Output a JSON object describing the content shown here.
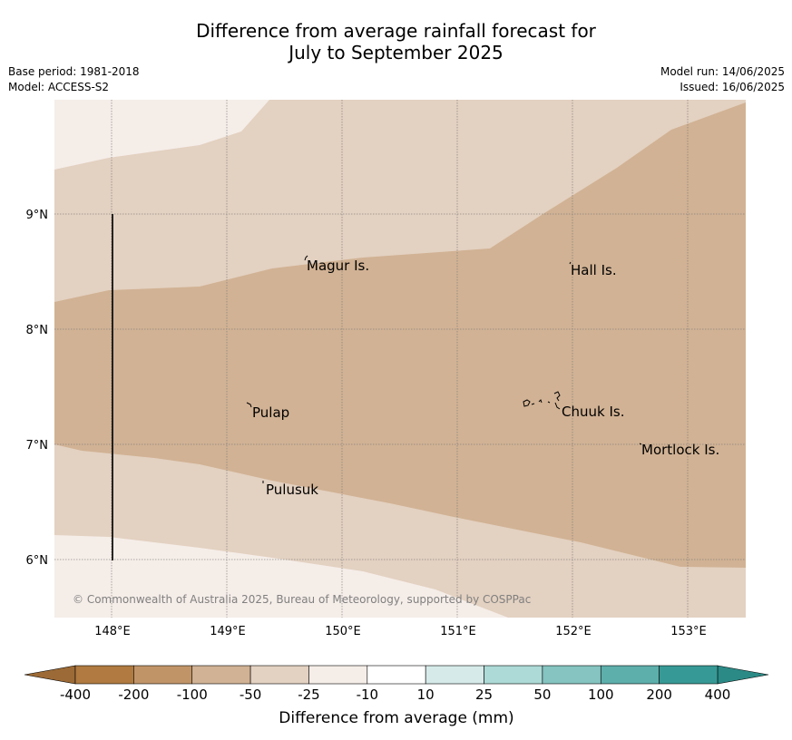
{
  "header": {
    "title_line1": "Difference from average rainfall forecast for",
    "title_line2": "July to September 2025",
    "base_period": "Base period: 1981-2018",
    "model": "Model: ACCESS-S2",
    "model_run": "Model run: 14/06/2025",
    "issued": "Issued: 16/06/2025"
  },
  "map": {
    "lon_ticks": [
      "148°E",
      "149°E",
      "150°E",
      "151°E",
      "152°E",
      "153°E"
    ],
    "lat_ticks": [
      "9°N",
      "8°N",
      "7°N",
      "6°N"
    ],
    "places": [
      "Magur Is.",
      "Hall Is.",
      "Pulap",
      "Chuuk Is.",
      "Mortlock Is.",
      "Pulusuk"
    ],
    "credit": "© Commonwealth of Australia 2025, Bureau of Meteorology, supported by COSPPac",
    "band_colors": {
      "minus_25_to_minus_10": "#f5ede8",
      "minus_50_to_minus_25": "#e3d1c1",
      "minus_100_to_minus_50": "#d1b294"
    }
  },
  "colorbar": {
    "labels": [
      "-400",
      "-200",
      "-100",
      "-50",
      "-25",
      "-10",
      "10",
      "25",
      "50",
      "100",
      "200",
      "400"
    ],
    "colors": [
      "#b07a40",
      "#c19468",
      "#d1b294",
      "#e3d1c1",
      "#f5ede8",
      "#ffffff",
      "#d6ebe9",
      "#addad6",
      "#85c4c0",
      "#5dafab",
      "#379995"
    ],
    "low_extend_color": "#9c6a36",
    "high_extend_color": "#2b8a86",
    "title": "Difference from average (mm)"
  }
}
